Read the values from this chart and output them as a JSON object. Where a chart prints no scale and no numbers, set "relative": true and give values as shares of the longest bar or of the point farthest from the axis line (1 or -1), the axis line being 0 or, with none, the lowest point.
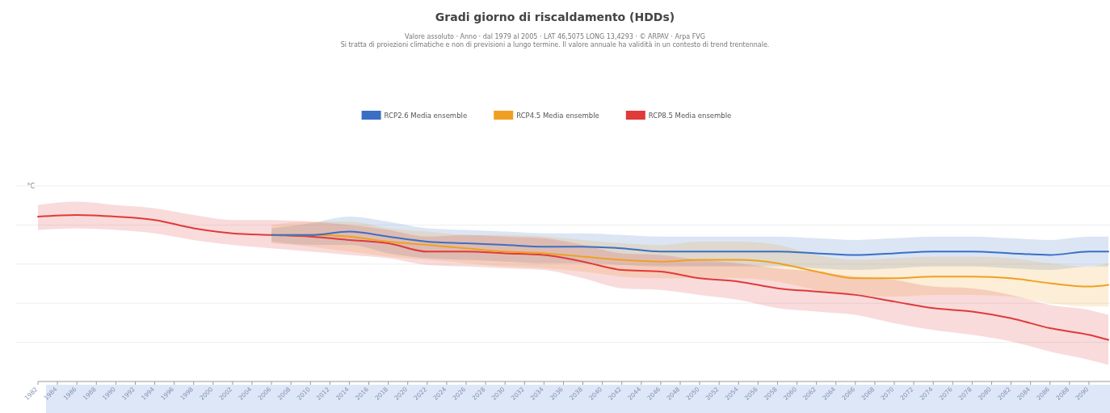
{
  "chart_data": {
    "type": "line",
    "title": "Gradi giorno di riscaldamento (HDDs)",
    "subtitle": "Valore assoluto · Anno · dal 1979 al 2005 · LAT 46,5075 LONG 13,4293 · © ARPAV · Arpa FVG",
    "annotations": [
      "Si tratta di proiezioni climatiche e non di previsioni a lungo termine. Il valore annuale ha validità in un contesto di trend trentennale."
    ],
    "ylabel": "°C",
    "relative": true,
    "grid": "y",
    "legend": "top",
    "xlim": [
      1982,
      2092
    ],
    "xticks": [
      1982,
      1984,
      1986,
      1988,
      1990,
      1992,
      1994,
      1996,
      1998,
      2000,
      2002,
      2004,
      2006,
      2008,
      2010,
      2012,
      2014,
      2016,
      2018,
      2020,
      2022,
      2024,
      2026,
      2028,
      2030,
      2032,
      2034,
      2036,
      2038,
      2040,
      2042,
      2044,
      2046,
      2048,
      2050,
      2052,
      2054,
      2056,
      2058,
      2060,
      2062,
      2064,
      2066,
      2068,
      2070,
      2072,
      2074,
      2076,
      2078,
      2080,
      2082,
      2084,
      2086,
      2088,
      2090
    ],
    "series": [
      {
        "name": "RCP2.6 Media ensemble",
        "color": "#3a6fc4",
        "x": [
          2006,
          2010,
          2014,
          2018,
          2022,
          2026,
          2030,
          2034,
          2038,
          2042,
          2046,
          2050,
          2054,
          2058,
          2062,
          2066,
          2070,
          2074,
          2078,
          2082,
          2086,
          2090,
          2092
        ],
        "values": [
          0.88,
          0.88,
          0.9,
          0.87,
          0.84,
          0.83,
          0.82,
          0.81,
          0.81,
          0.8,
          0.78,
          0.78,
          0.78,
          0.78,
          0.77,
          0.76,
          0.77,
          0.78,
          0.78,
          0.77,
          0.76,
          0.78,
          0.78
        ],
        "lower": [
          0.84,
          0.82,
          0.82,
          0.77,
          0.74,
          0.73,
          0.72,
          0.71,
          0.71,
          0.7,
          0.69,
          0.69,
          0.69,
          0.69,
          0.68,
          0.67,
          0.68,
          0.69,
          0.69,
          0.68,
          0.67,
          0.69,
          0.69
        ],
        "upper": [
          0.92,
          0.95,
          0.99,
          0.96,
          0.92,
          0.91,
          0.9,
          0.89,
          0.89,
          0.88,
          0.87,
          0.87,
          0.87,
          0.87,
          0.86,
          0.85,
          0.86,
          0.87,
          0.87,
          0.86,
          0.85,
          0.87,
          0.87
        ]
      },
      {
        "name": "RCP4.5 Media ensemble",
        "color": "#f0a020",
        "x": [
          2006,
          2010,
          2014,
          2018,
          2022,
          2026,
          2030,
          2034,
          2038,
          2042,
          2046,
          2050,
          2054,
          2058,
          2062,
          2066,
          2070,
          2074,
          2078,
          2082,
          2086,
          2090,
          2092
        ],
        "values": [
          0.88,
          0.88,
          0.87,
          0.84,
          0.82,
          0.8,
          0.78,
          0.77,
          0.75,
          0.73,
          0.72,
          0.73,
          0.73,
          0.71,
          0.66,
          0.62,
          0.62,
          0.63,
          0.63,
          0.62,
          0.59,
          0.57,
          0.58
        ],
        "lower": [
          0.83,
          0.81,
          0.78,
          0.75,
          0.73,
          0.71,
          0.69,
          0.68,
          0.66,
          0.63,
          0.62,
          0.62,
          0.62,
          0.6,
          0.55,
          0.52,
          0.51,
          0.52,
          0.52,
          0.51,
          0.47,
          0.45,
          0.45
        ],
        "upper": [
          0.94,
          0.96,
          0.96,
          0.92,
          0.9,
          0.88,
          0.88,
          0.87,
          0.85,
          0.83,
          0.82,
          0.84,
          0.84,
          0.82,
          0.76,
          0.73,
          0.74,
          0.75,
          0.75,
          0.74,
          0.71,
          0.69,
          0.71
        ]
      },
      {
        "name": "RCP8.5 Media ensemble",
        "color": "#e03a3a",
        "x": [
          1982,
          1986,
          1990,
          1994,
          1998,
          2002,
          2006,
          2010,
          2014,
          2018,
          2022,
          2026,
          2030,
          2034,
          2038,
          2042,
          2046,
          2050,
          2054,
          2058,
          2062,
          2066,
          2070,
          2074,
          2078,
          2082,
          2086,
          2090,
          2092
        ],
        "values": [
          0.99,
          1,
          0.99,
          0.97,
          0.92,
          0.89,
          0.88,
          0.87,
          0.85,
          0.83,
          0.78,
          0.78,
          0.77,
          0.76,
          0.72,
          0.67,
          0.66,
          0.62,
          0.6,
          0.56,
          0.54,
          0.52,
          0.48,
          0.44,
          0.42,
          0.38,
          0.32,
          0.28,
          0.25
        ],
        "lower": [
          0.91,
          0.92,
          0.91,
          0.89,
          0.85,
          0.82,
          0.8,
          0.78,
          0.76,
          0.74,
          0.7,
          0.69,
          0.68,
          0.67,
          0.62,
          0.56,
          0.55,
          0.52,
          0.49,
          0.44,
          0.42,
          0.4,
          0.35,
          0.31,
          0.28,
          0.24,
          0.18,
          0.13,
          0.1
        ],
        "upper": [
          1.06,
          1.08,
          1.06,
          1.04,
          1.0,
          0.97,
          0.97,
          0.96,
          0.94,
          0.91,
          0.87,
          0.88,
          0.87,
          0.86,
          0.82,
          0.77,
          0.76,
          0.73,
          0.71,
          0.68,
          0.66,
          0.63,
          0.61,
          0.57,
          0.56,
          0.52,
          0.46,
          0.43,
          0.4
        ]
      }
    ]
  }
}
